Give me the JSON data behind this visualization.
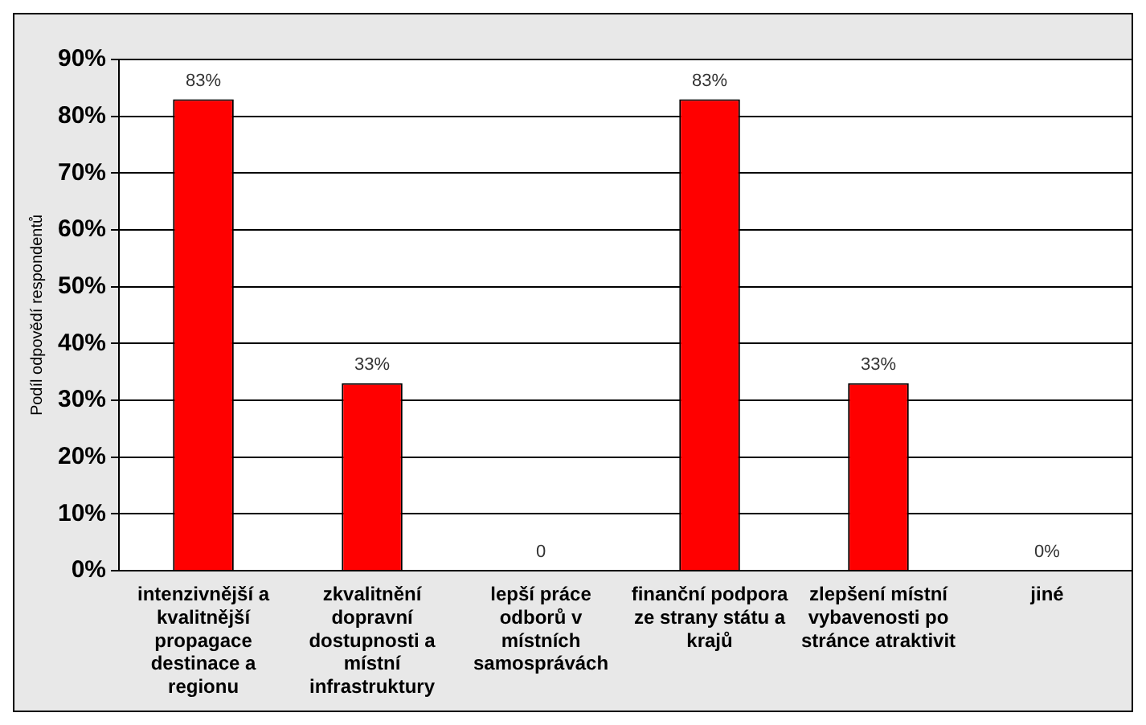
{
  "chart_data": {
    "type": "bar",
    "ylabel": "Podíl odpovědí respondentů",
    "categories": [
      "intenzivnější a kvalitnější propagace destinace a regionu",
      "zkvalitnění dopravní dostupnosti a místní infrastruktury",
      "lepší práce odborů v místních samosprávách",
      "finanční podpora ze strany státu a krajů",
      "zlepšení místní vybavenosti po stránce atraktivit",
      "jiné"
    ],
    "values": [
      83,
      33,
      0,
      83,
      33,
      0
    ],
    "value_labels": [
      "83%",
      "33%",
      "0",
      "83%",
      "33%",
      "0%"
    ],
    "color": "#ff0000",
    "ylim": [
      0,
      90
    ],
    "yticks": [
      {
        "value": 0,
        "label": "0%"
      },
      {
        "value": 10,
        "label": "10%"
      },
      {
        "value": 20,
        "label": "20%"
      },
      {
        "value": 30,
        "label": "30%"
      },
      {
        "value": 40,
        "label": "40%"
      },
      {
        "value": 50,
        "label": "50%"
      },
      {
        "value": 60,
        "label": "60%"
      },
      {
        "value": 70,
        "label": "70%"
      },
      {
        "value": 80,
        "label": "80%"
      },
      {
        "value": 90,
        "label": "90%"
      }
    ],
    "grid": "y",
    "legend": false
  }
}
